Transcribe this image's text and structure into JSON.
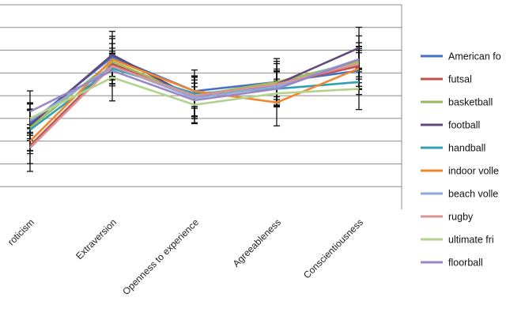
{
  "chart_data": {
    "type": "line",
    "title": "",
    "xlabel": "",
    "ylabel": "",
    "grid": true,
    "legend_placement": "right",
    "categories": [
      "Neuroticism",
      "Extraversion",
      "Openness to experience",
      "Agreeableness",
      "Conscientiousness"
    ],
    "category_labels_visible": [
      "roticism",
      "Extraversion",
      "Openness to experience",
      "Agreeableness",
      "Conscientiousness"
    ],
    "ylim": [
      0,
      9
    ],
    "series": [
      {
        "name": "American football",
        "legend_text": "American fo",
        "color": "#4472C4",
        "values": [
          3.8,
          6.7,
          5.2,
          5.6,
          6.1
        ]
      },
      {
        "name": "futsal",
        "legend_text": "futsal",
        "color": "#C0504D",
        "values": [
          2.8,
          6.4,
          4.9,
          5.5,
          6.3
        ]
      },
      {
        "name": "basketball",
        "legend_text": "basketball",
        "color": "#9BBB59",
        "values": [
          3.6,
          6.5,
          5.0,
          5.6,
          6.5
        ]
      },
      {
        "name": "football",
        "legend_text": "football",
        "color": "#604A7B",
        "values": [
          3.7,
          6.8,
          4.9,
          5.5,
          7.1
        ]
      },
      {
        "name": "handball",
        "legend_text": "handball",
        "color": "#31A0B5",
        "values": [
          3.5,
          6.2,
          5.1,
          5.3,
          5.6
        ]
      },
      {
        "name": "indoor volleyball",
        "legend_text": "indoor volle",
        "color": "#F0872E",
        "values": [
          3.0,
          6.6,
          5.2,
          4.7,
          6.2
        ]
      },
      {
        "name": "beach volleyball",
        "legend_text": "beach volle",
        "color": "#8EA9DB",
        "values": [
          3.9,
          6.3,
          4.9,
          5.4,
          6.6
        ]
      },
      {
        "name": "rugby",
        "legend_text": "rugby",
        "color": "#D99594",
        "values": [
          2.7,
          6.3,
          5.0,
          5.5,
          6.4
        ]
      },
      {
        "name": "ultimate frisbee",
        "legend_text": "ultimate fri",
        "color": "#B3D28B",
        "values": [
          4.0,
          5.8,
          4.6,
          5.1,
          5.3
        ]
      },
      {
        "name": "floorball",
        "legend_text": "floorball",
        "color": "#9887C2",
        "values": [
          4.3,
          6.1,
          4.8,
          5.3,
          6.6
        ]
      }
    ]
  }
}
